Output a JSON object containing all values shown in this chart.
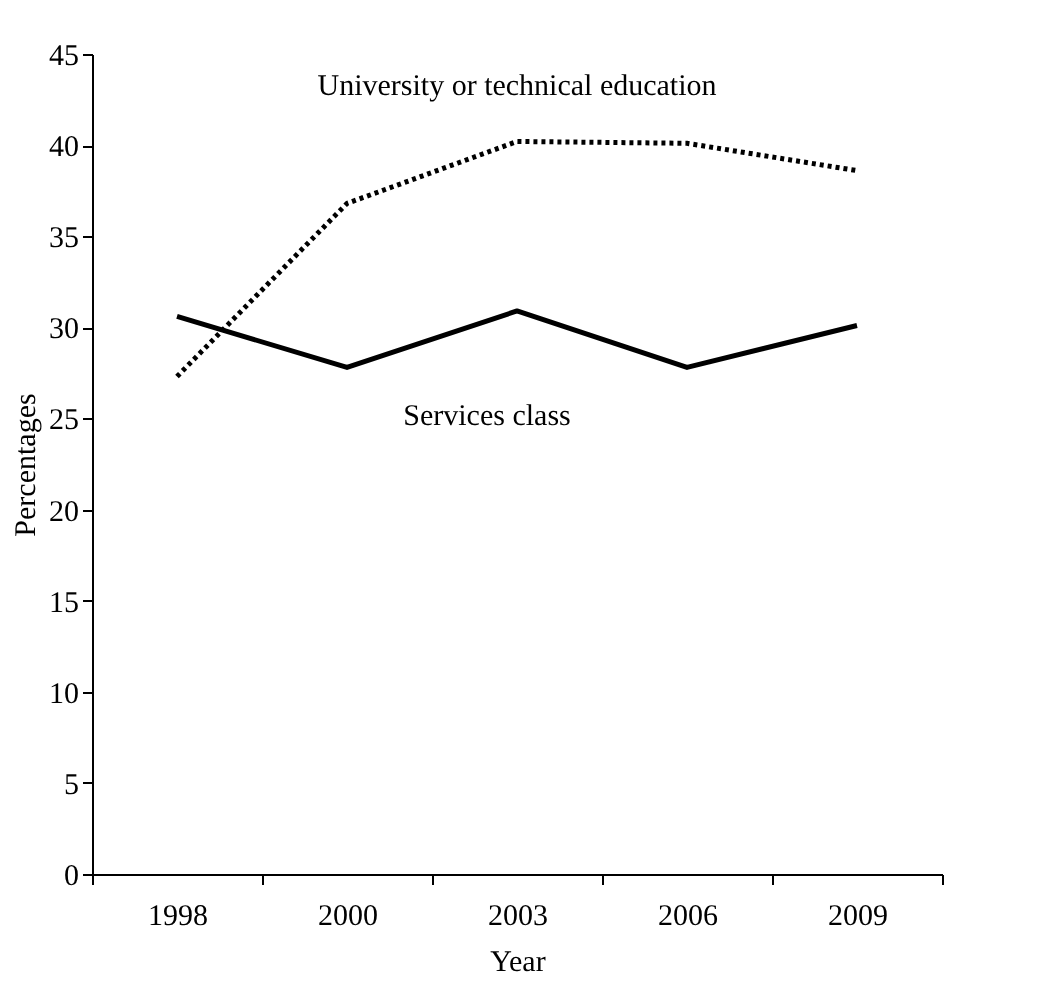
{
  "chart_data": {
    "type": "line",
    "xlabel": "Year",
    "ylabel": "Percentages",
    "categories": [
      "1998",
      "2000",
      "2003",
      "2006",
      "2009"
    ],
    "series": [
      {
        "name": "University or technical education",
        "color": "#000000",
        "line_style": "dotted",
        "values": [
          27.3,
          36.8,
          40.2,
          40.1,
          38.6
        ]
      },
      {
        "name": "Services class",
        "color": "#000000",
        "line_style": "solid",
        "values": [
          30.6,
          27.8,
          30.9,
          27.8,
          30.1
        ]
      }
    ],
    "ylim": [
      0,
      45
    ],
    "yticks": [
      0,
      5,
      10,
      15,
      20,
      25,
      30,
      35,
      40,
      45
    ],
    "grid": false,
    "marker": "none"
  }
}
